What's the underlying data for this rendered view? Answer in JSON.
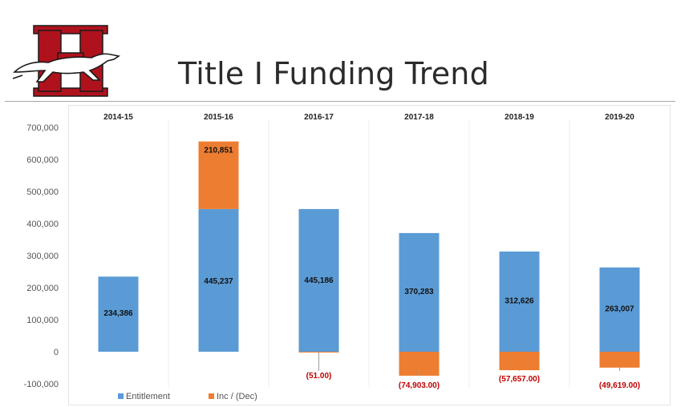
{
  "header": {
    "title": "Title I Funding Trend"
  },
  "colors": {
    "entitlement": "#5b9bd5",
    "inc_dec": "#ed7d31",
    "negative_label": "#c00000",
    "logo_red": "#b0121d",
    "logo_dark": "#1a1a1a"
  },
  "icons": {
    "logo": "greyhound-h-logo"
  },
  "chart_data": {
    "type": "bar",
    "stacked": true,
    "title": "",
    "xlabel": "",
    "ylabel": "",
    "categories": [
      "2014-15",
      "2015-16",
      "2016-17",
      "2017-18",
      "2018-19",
      "2019-20"
    ],
    "ylim": [
      -100000,
      700000
    ],
    "yticks": [
      -100000,
      0,
      100000,
      200000,
      300000,
      400000,
      500000,
      600000,
      700000
    ],
    "ytick_labels": [
      "-100,000",
      "0",
      "100,000",
      "200,000",
      "300,000",
      "400,000",
      "500,000",
      "600,000",
      "700,000"
    ],
    "grid": false,
    "category_labels_position": "top",
    "legend_position": "bottom-left",
    "series": [
      {
        "name": "Entitlement",
        "values": [
          234386,
          445237,
          445186,
          370283,
          312626,
          263007
        ],
        "labels": [
          "234,386",
          "445,237",
          "445,186",
          "370,283",
          "312,626",
          "263,007"
        ]
      },
      {
        "name": "Inc / (Dec)",
        "values": [
          null,
          210851,
          -51,
          -74903,
          -57657,
          -49619
        ],
        "labels": [
          "",
          "210,851",
          "(51.00)",
          "(74,903.00)",
          "(57,657.00)",
          "(49,619.00)"
        ]
      }
    ]
  }
}
